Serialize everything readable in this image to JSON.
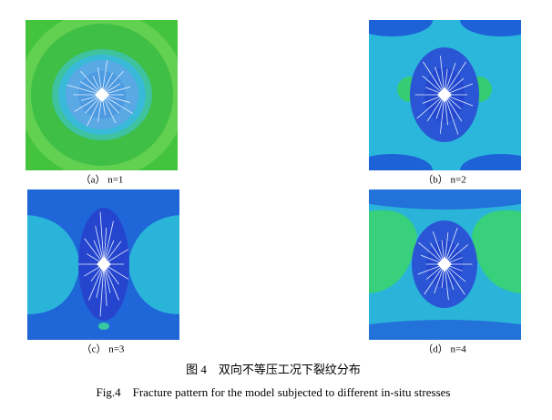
{
  "figure": {
    "panels": [
      {
        "label": "（a） n=1"
      },
      {
        "label": "（b） n=2"
      },
      {
        "label": "（c） n=3"
      },
      {
        "label": "（d） n=4"
      }
    ],
    "caption_cn": "图 4　双向不等压工况下裂纹分布",
    "caption_en": "Fig.4　Fracture pattern for the model subjected to different in-situ stresses"
  }
}
